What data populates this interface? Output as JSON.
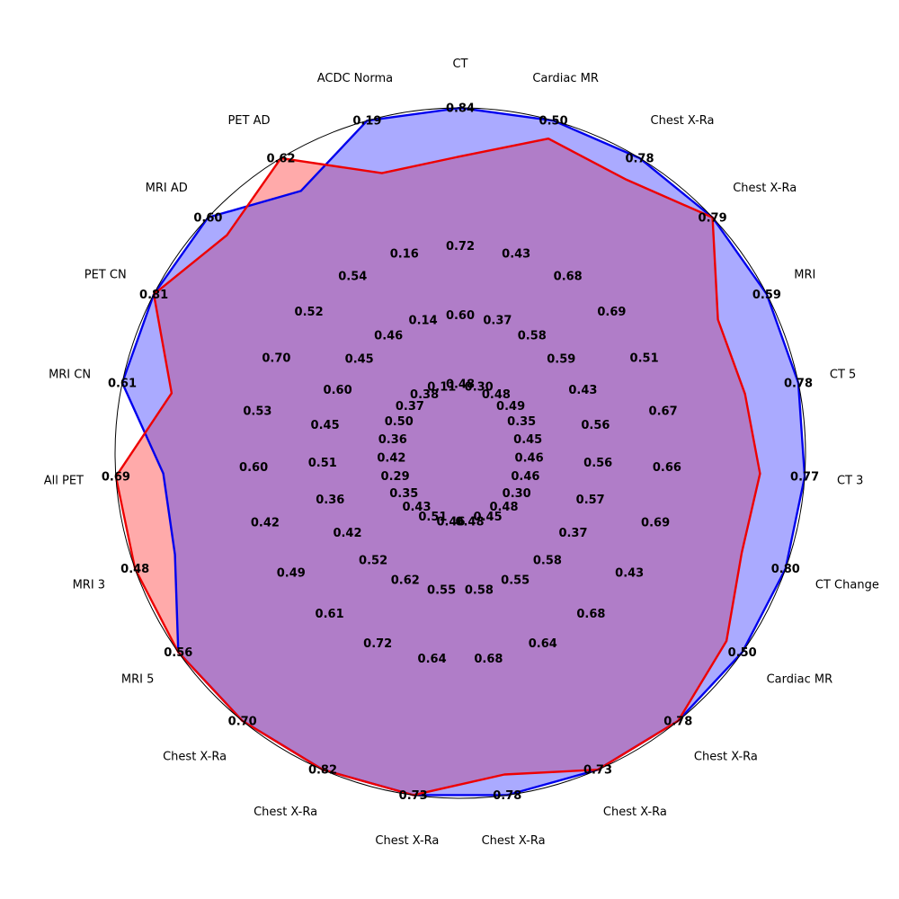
{
  "chart_data": {
    "type": "radar",
    "title": "",
    "grid": true,
    "colors": {
      "blue_series": "#0000ee",
      "blue_fill": "#aaaaff",
      "red_series": "#ee0000",
      "red_fill": "#ffaaaa",
      "overlap_fill": "#b07dc8",
      "grid": "#b0b0b0"
    },
    "categories": [
      "CT",
      "Cardiac MR",
      "Chest X-Ra",
      "Chest X-Ra",
      "MRI",
      "CT 5",
      "CT 3",
      "CT Change",
      "Cardiac MR",
      "Chest X-Ra",
      "Chest X-Ra",
      "Chest X-Ra",
      "Chest X-Ra",
      "Chest X-Ra",
      "Chest X-Ra",
      "MRI 5",
      "MRI 3",
      "All PET",
      "MRI CN",
      "PET CN",
      "MRI AD",
      "PET AD",
      "ACDC Norma"
    ],
    "axes": [
      {
        "ticks": [
          "0.48",
          "0.60",
          "0.72",
          "0.84"
        ],
        "max": 0.84
      },
      {
        "ticks": [
          "0.30",
          "0.37",
          "0.43",
          "0.50"
        ],
        "max": 0.5
      },
      {
        "ticks": [
          "0.48",
          "0.58",
          "0.68",
          "0.78"
        ],
        "max": 0.78
      },
      {
        "ticks": [
          "0.49",
          "0.59",
          "0.69",
          "0.79"
        ],
        "max": 0.79
      },
      {
        "ticks": [
          "0.35",
          "0.43",
          "0.51",
          "0.59"
        ],
        "max": 0.59
      },
      {
        "ticks": [
          "0.45",
          "0.56",
          "0.67",
          "0.78"
        ],
        "max": 0.78
      },
      {
        "ticks": [
          "0.46",
          "0.56",
          "0.66",
          "0.77"
        ],
        "max": 0.77
      },
      {
        "ticks": [
          "0.46",
          "0.57",
          "0.69",
          "0.80"
        ],
        "max": 0.8
      },
      {
        "ticks": [
          "0.30",
          "0.37",
          "0.43",
          "0.50"
        ],
        "max": 0.5
      },
      {
        "ticks": [
          "0.48",
          "0.58",
          "0.68",
          "0.78"
        ],
        "max": 0.78
      },
      {
        "ticks": [
          "0.45",
          "0.55",
          "0.64",
          "0.73"
        ],
        "max": 0.73
      },
      {
        "ticks": [
          "0.48",
          "0.58",
          "0.68",
          "0.78"
        ],
        "max": 0.78
      },
      {
        "ticks": [
          "0.46",
          "0.55",
          "0.64",
          "0.73"
        ],
        "max": 0.73
      },
      {
        "ticks": [
          "0.51",
          "0.62",
          "0.72",
          "0.82"
        ],
        "max": 0.82
      },
      {
        "ticks": [
          "0.43",
          "0.52",
          "0.61",
          "0.70"
        ],
        "max": 0.7
      },
      {
        "ticks": [
          "0.35",
          "0.42",
          "0.49",
          "0.56"
        ],
        "max": 0.56
      },
      {
        "ticks": [
          "0.29",
          "0.36",
          "0.42",
          "0.48"
        ],
        "max": 0.48
      },
      {
        "ticks": [
          "0.42",
          "0.51",
          "0.60",
          "0.69"
        ],
        "max": 0.69
      },
      {
        "ticks": [
          "0.36",
          "0.45",
          "0.53",
          "0.61"
        ],
        "max": 0.61
      },
      {
        "ticks": [
          "0.50",
          "0.60",
          "0.70",
          "0.81"
        ],
        "max": 0.81
      },
      {
        "ticks": [
          "0.37",
          "0.45",
          "0.52",
          "0.60"
        ],
        "max": 0.6
      },
      {
        "ticks": [
          "0.38",
          "0.46",
          "0.54",
          "0.62"
        ],
        "max": 0.62
      },
      {
        "ticks": [
          "0.11",
          "0.14",
          "0.16",
          "0.19"
        ],
        "max": 0.19
      }
    ],
    "series": [
      {
        "color_key": "blue",
        "values": [
          0.84,
          0.5,
          0.78,
          0.79,
          0.59,
          0.78,
          0.77,
          0.8,
          0.5,
          0.78,
          0.73,
          0.78,
          0.73,
          0.82,
          0.7,
          0.56,
          0.421,
          0.595,
          0.61,
          0.81,
          0.6,
          0.551,
          0.19
        ]
      },
      {
        "color_key": "red",
        "values": [
          0.722,
          0.473,
          0.723,
          0.79,
          0.496,
          0.657,
          0.67,
          0.692,
          0.472,
          0.78,
          0.73,
          0.733,
          0.73,
          0.82,
          0.7,
          0.56,
          0.48,
          0.69,
          0.521,
          0.81,
          0.555,
          0.62,
          0.16
        ]
      }
    ]
  }
}
